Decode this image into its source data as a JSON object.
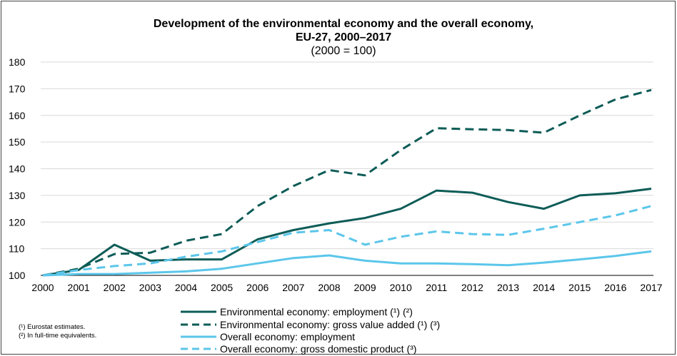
{
  "chart_data": {
    "type": "line",
    "title": "Development of the environmental economy and the overall economy,",
    "title_line2": "EU-27, 2000–2017",
    "subtitle": "(2000 = 100)",
    "x": [
      "2000",
      "2001",
      "2002",
      "2003",
      "2004",
      "2005",
      "2006",
      "2007",
      "2008",
      "2009",
      "2010",
      "2011",
      "2012",
      "2013",
      "2014",
      "2015",
      "2016",
      "2017"
    ],
    "ylim": [
      100,
      180
    ],
    "yticks": [
      100,
      110,
      120,
      130,
      140,
      150,
      160,
      170,
      180
    ],
    "grid": "horizontal",
    "legend_position": "bottom",
    "series": [
      {
        "name": "Environmental economy: employment (¹) (²)",
        "color": "#0d5c57",
        "style": "solid",
        "values": [
          100,
          102,
          111.5,
          105.5,
          106,
          106,
          113.5,
          117,
          119.5,
          121.5,
          125,
          131.8,
          131,
          127.5,
          125,
          130,
          130.8,
          132.5
        ]
      },
      {
        "name": "Environmental economy: gross value added (¹) (³)",
        "color": "#0d5c57",
        "style": "dashed",
        "values": [
          100,
          102.5,
          108,
          108.5,
          113,
          115.5,
          126,
          133.5,
          139.5,
          137.5,
          147,
          155.2,
          154.8,
          154.5,
          153.5,
          160,
          166,
          169.5
        ]
      },
      {
        "name": "Overall economy: employment",
        "color": "#5bc6ea",
        "style": "solid",
        "values": [
          100,
          100.5,
          100.5,
          101,
          101.5,
          102.5,
          104.5,
          106.5,
          107.5,
          105.5,
          104.5,
          104.5,
          104.2,
          103.8,
          104.8,
          106,
          107.3,
          109
        ]
      },
      {
        "name": "Overall economy: gross domestic product (³)",
        "color": "#5bc6ea",
        "style": "dashed",
        "values": [
          100,
          102,
          103.5,
          104.5,
          107,
          109,
          112.5,
          116,
          117,
          111.5,
          114.5,
          116.5,
          115.5,
          115.2,
          117.5,
          120,
          122.5,
          126
        ]
      }
    ],
    "footnotes": [
      "(¹) Eurostat estimates.",
      "(²) In full-time equivalents."
    ]
  }
}
